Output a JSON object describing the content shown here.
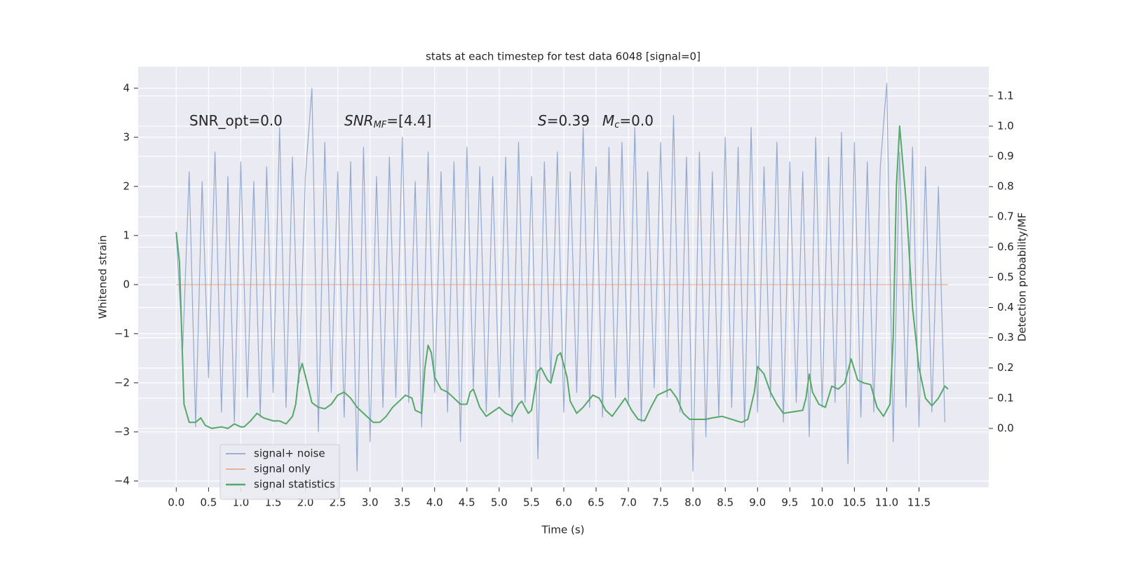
{
  "chart_data": {
    "type": "line",
    "title": "stats at each timestep for test data 6048 [signal=0]",
    "xlabel": "Time (s)",
    "ylabel": "Whitened strain",
    "y2label": "Detection probability/MF",
    "annotations": [
      [
        {
          "text": "SNR_opt=0.0"
        }
      ],
      [
        {
          "italic": "SNR",
          "sub": "MF",
          "text": "=[4.4]"
        }
      ],
      [
        {
          "italic": "S",
          "text": "=0.39"
        }
      ],
      [
        {
          "italic": "M",
          "sub": "c",
          "text": "=0.0"
        }
      ]
    ],
    "xlim": [
      -0.59,
      12.58
    ],
    "ylim": [
      -4.13,
      4.44
    ],
    "y2lim": [
      -0.195,
      1.197
    ],
    "xticks": [
      {
        "value": 0,
        "label": "0.0"
      },
      0.5,
      {
        "value": 1,
        "label": "1.0"
      },
      1.5,
      {
        "value": 2,
        "label": "2.0"
      },
      2.5,
      {
        "value": 3,
        "label": "3.0"
      },
      3.5,
      {
        "value": 4,
        "label": "4.0"
      },
      4.5,
      {
        "value": 5,
        "label": "5.0"
      },
      5.5,
      {
        "value": 6,
        "label": "6.0"
      },
      6.5,
      {
        "value": 7,
        "label": "7.0"
      },
      7.5,
      {
        "value": 8,
        "label": "8.0"
      },
      8.5,
      {
        "value": 9,
        "label": "9.0"
      },
      9.5,
      {
        "value": 10,
        "label": "10.0"
      },
      10.5,
      {
        "value": 11,
        "label": "11.0"
      },
      11.5
    ],
    "yticks": [
      {
        "value": -4,
        "label": "−4"
      },
      {
        "value": -3,
        "label": "−3"
      },
      {
        "value": -2,
        "label": "−2"
      },
      {
        "value": -1,
        "label": "−1"
      },
      0,
      1,
      2,
      3,
      4
    ],
    "y2ticks": [
      {
        "value": 0,
        "label": "0.0"
      },
      0.1,
      0.2,
      0.3,
      0.4,
      0.5,
      0.6,
      0.7,
      0.8,
      0.9,
      {
        "value": 1,
        "label": "1.0"
      },
      1.1
    ],
    "grid": true,
    "legend": "lower left",
    "series": [
      {
        "name": "signal+ noise",
        "color": "#4c72b0",
        "x": [
          0.0,
          0.1,
          0.2,
          0.3,
          0.4,
          0.5,
          0.6,
          0.7,
          0.8,
          0.9,
          1.0,
          1.1,
          1.2,
          1.3,
          1.4,
          1.5,
          1.6,
          1.7,
          1.8,
          1.9,
          2.0,
          2.1,
          2.2,
          2.3,
          2.4,
          2.5,
          2.6,
          2.7,
          2.8,
          2.9,
          3.0,
          3.1,
          3.2,
          3.3,
          3.4,
          3.5,
          3.6,
          3.7,
          3.8,
          3.9,
          4.0,
          4.1,
          4.2,
          4.3,
          4.4,
          4.5,
          4.6,
          4.7,
          4.8,
          4.9,
          5.0,
          5.1,
          5.2,
          5.3,
          5.4,
          5.5,
          5.6,
          5.7,
          5.8,
          5.9,
          6.0,
          6.1,
          6.2,
          6.3,
          6.4,
          6.5,
          6.6,
          6.7,
          6.8,
          6.9,
          7.0,
          7.1,
          7.2,
          7.3,
          7.4,
          7.5,
          7.6,
          7.7,
          7.8,
          7.9,
          8.0,
          8.1,
          8.2,
          8.3,
          8.4,
          8.5,
          8.6,
          8.7,
          8.8,
          8.9,
          9.0,
          9.1,
          9.2,
          9.3,
          9.4,
          9.5,
          9.6,
          9.7,
          9.8,
          9.9,
          10.0,
          10.1,
          10.2,
          10.3,
          10.4,
          10.5,
          10.6,
          10.7,
          10.8,
          10.9,
          11.0,
          11.1,
          11.2,
          11.3,
          11.4,
          11.5,
          11.6,
          11.7,
          11.8,
          11.9
        ],
        "values": [
          1.0,
          -1.3,
          2.3,
          -2.9,
          2.1,
          -1.9,
          2.7,
          -2.6,
          2.2,
          -2.8,
          2.5,
          -2.3,
          2.1,
          -2.7,
          2.4,
          -2.2,
          3.2,
          -2.5,
          2.6,
          -2.0,
          2.2,
          4.0,
          -3.0,
          2.9,
          -2.2,
          2.3,
          -2.7,
          2.5,
          -3.8,
          2.8,
          -3.2,
          2.2,
          -2.5,
          2.6,
          -2.3,
          3.0,
          -2.4,
          2.1,
          -2.9,
          2.7,
          -2.2,
          2.3,
          -2.6,
          2.5,
          -3.2,
          2.8,
          -2.1,
          2.4,
          -2.6,
          2.2,
          -2.3,
          2.6,
          -2.8,
          2.9,
          -2.4,
          2.2,
          -3.55,
          2.5,
          -2.0,
          2.7,
          -2.6,
          2.3,
          -2.2,
          3.2,
          -2.5,
          2.4,
          -2.7,
          2.8,
          -2.3,
          2.9,
          -2.4,
          3.2,
          -2.8,
          2.3,
          -2.1,
          2.9,
          -2.3,
          3.45,
          -2.6,
          2.6,
          -3.8,
          2.7,
          -3.1,
          2.3,
          -2.7,
          3.0,
          -2.5,
          2.8,
          -2.9,
          3.2,
          -2.6,
          2.4,
          -2.3,
          2.9,
          -2.8,
          2.5,
          -2.4,
          2.3,
          -3.1,
          3.0,
          -2.5,
          2.6,
          -2.4,
          3.1,
          -3.65,
          2.9,
          -2.7,
          2.5,
          -2.6,
          2.4,
          4.1,
          -3.2,
          2.7,
          -2.5,
          2.8,
          -2.9,
          2.4,
          -2.6,
          2.0,
          -2.8
        ]
      },
      {
        "name": "signal only",
        "color": "#dd8452",
        "x": [
          0.0,
          11.95
        ],
        "values": [
          0,
          0
        ]
      },
      {
        "name": "signal statistics",
        "color": "#55a868",
        "axis": "y2",
        "x": [
          0.0,
          0.05,
          0.12,
          0.2,
          0.3,
          0.38,
          0.45,
          0.55,
          0.7,
          0.8,
          0.9,
          1.0,
          1.05,
          1.15,
          1.25,
          1.35,
          1.5,
          1.6,
          1.7,
          1.8,
          1.85,
          1.9,
          1.95,
          2.05,
          2.1,
          2.2,
          2.3,
          2.4,
          2.5,
          2.6,
          2.7,
          2.8,
          2.9,
          3.0,
          3.05,
          3.15,
          3.25,
          3.35,
          3.45,
          3.55,
          3.65,
          3.7,
          3.8,
          3.85,
          3.9,
          3.95,
          4.0,
          4.1,
          4.2,
          4.3,
          4.4,
          4.5,
          4.55,
          4.6,
          4.7,
          4.8,
          4.9,
          5.0,
          5.1,
          5.2,
          5.3,
          5.35,
          5.45,
          5.5,
          5.6,
          5.65,
          5.75,
          5.8,
          5.9,
          5.95,
          6.05,
          6.1,
          6.2,
          6.3,
          6.45,
          6.55,
          6.65,
          6.75,
          6.85,
          6.95,
          7.05,
          7.15,
          7.25,
          7.35,
          7.45,
          7.55,
          7.65,
          7.75,
          7.85,
          7.95,
          8.2,
          8.3,
          8.45,
          8.6,
          8.75,
          8.85,
          8.95,
          9.0,
          9.1,
          9.2,
          9.3,
          9.4,
          9.55,
          9.7,
          9.75,
          9.8,
          9.85,
          9.95,
          10.05,
          10.15,
          10.25,
          10.35,
          10.45,
          10.55,
          10.65,
          10.75,
          10.85,
          10.95,
          11.05,
          11.1,
          11.15,
          11.2,
          11.3,
          11.4,
          11.5,
          11.6,
          11.7,
          11.8,
          11.9,
          11.95
        ],
        "values": [
          0.65,
          0.55,
          0.08,
          0.02,
          0.02,
          0.035,
          0.01,
          0.0,
          0.005,
          0.0,
          0.015,
          0.005,
          0.005,
          0.025,
          0.05,
          0.035,
          0.025,
          0.025,
          0.015,
          0.04,
          0.08,
          0.18,
          0.215,
          0.13,
          0.085,
          0.07,
          0.065,
          0.08,
          0.11,
          0.12,
          0.1,
          0.07,
          0.05,
          0.03,
          0.02,
          0.02,
          0.04,
          0.07,
          0.09,
          0.11,
          0.1,
          0.06,
          0.05,
          0.2,
          0.275,
          0.25,
          0.17,
          0.13,
          0.12,
          0.1,
          0.08,
          0.08,
          0.12,
          0.13,
          0.07,
          0.04,
          0.055,
          0.07,
          0.05,
          0.04,
          0.08,
          0.09,
          0.05,
          0.06,
          0.19,
          0.2,
          0.16,
          0.15,
          0.24,
          0.25,
          0.17,
          0.09,
          0.05,
          0.07,
          0.11,
          0.1,
          0.06,
          0.04,
          0.07,
          0.1,
          0.06,
          0.03,
          0.025,
          0.07,
          0.11,
          0.12,
          0.13,
          0.1,
          0.05,
          0.03,
          0.03,
          0.035,
          0.04,
          0.03,
          0.02,
          0.03,
          0.12,
          0.205,
          0.18,
          0.12,
          0.08,
          0.05,
          0.055,
          0.06,
          0.1,
          0.18,
          0.12,
          0.08,
          0.07,
          0.14,
          0.13,
          0.15,
          0.23,
          0.16,
          0.15,
          0.145,
          0.07,
          0.04,
          0.08,
          0.3,
          0.8,
          1.0,
          0.75,
          0.4,
          0.2,
          0.1,
          0.075,
          0.1,
          0.14,
          0.13
        ]
      }
    ]
  }
}
